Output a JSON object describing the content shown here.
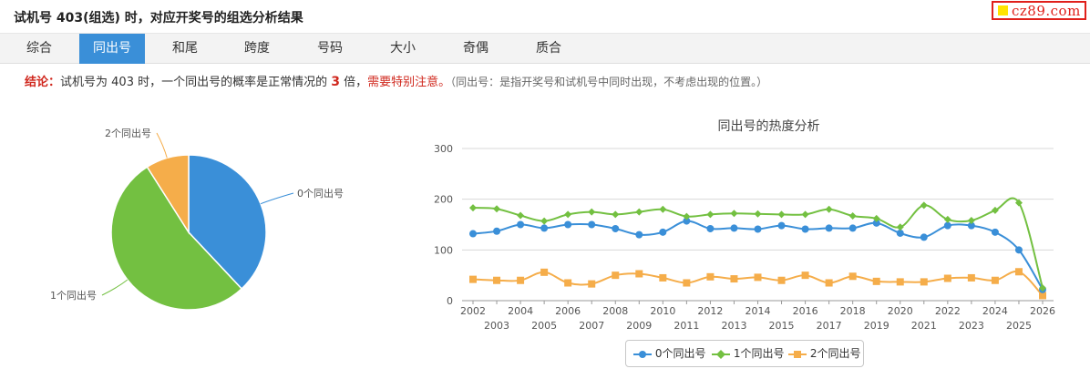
{
  "header": {
    "title": "试机号 403(组选) 时，对应开奖号的组选分析结果",
    "logo_text": "cz89.com"
  },
  "tabs": [
    {
      "label": "综合",
      "active": false
    },
    {
      "label": "同出号",
      "active": true
    },
    {
      "label": "和尾",
      "active": false
    },
    {
      "label": "跨度",
      "active": false
    },
    {
      "label": "号码",
      "active": false
    },
    {
      "label": "大小",
      "active": false
    },
    {
      "label": "奇偶",
      "active": false
    },
    {
      "label": "质合",
      "active": false
    }
  ],
  "conclusion": {
    "label": "结论：",
    "text_before": "试机号为 403 时，一个同出号的概率是正常情况的 ",
    "multiple": "3",
    "text_after": " 倍，",
    "warning": "需要特别注意。",
    "note": "（同出号：是指开奖号和试机号中同时出现，不考虑出现的位置。）"
  },
  "colors": {
    "series0": "#3a8fd8",
    "series1": "#73c041",
    "series2": "#f5ad4a",
    "accent_red": "#d0281e",
    "tab_active": "#3a8fd8"
  },
  "chart_data": [
    {
      "type": "pie",
      "labels": [
        "0个同出号",
        "1个同出号",
        "2个同出号"
      ],
      "values": [
        38,
        53,
        9
      ]
    },
    {
      "type": "line",
      "title": "同出号的热度分析",
      "x": [
        "2002",
        "2003",
        "2004",
        "2005",
        "2006",
        "2007",
        "2008",
        "2009",
        "2010",
        "2011",
        "2012",
        "2013",
        "2014",
        "2015",
        "2016",
        "2017",
        "2018",
        "2019",
        "2020",
        "2021",
        "2022",
        "2023",
        "2024",
        "2025",
        "2026"
      ],
      "ylim": [
        0,
        300
      ],
      "yticks": [
        0,
        100,
        200,
        300
      ],
      "grid": true,
      "legend_position": "bottom-center",
      "series": [
        {
          "name": "0个同出号",
          "marker": "circle",
          "values": [
            132,
            137,
            150,
            143,
            150,
            150,
            142,
            130,
            135,
            157,
            142,
            143,
            141,
            148,
            141,
            143,
            143,
            153,
            133,
            125,
            148,
            148,
            135,
            100,
            22
          ]
        },
        {
          "name": "1个同出号",
          "marker": "diamond",
          "values": [
            183,
            181,
            168,
            157,
            170,
            175,
            170,
            175,
            180,
            166,
            170,
            172,
            171,
            170,
            170,
            180,
            167,
            162,
            145,
            188,
            160,
            158,
            178,
            193,
            25
          ]
        },
        {
          "name": "2个同出号",
          "marker": "square",
          "values": [
            42,
            40,
            40,
            56,
            35,
            33,
            50,
            53,
            45,
            35,
            47,
            43,
            46,
            40,
            50,
            35,
            48,
            38,
            37,
            37,
            44,
            45,
            40,
            57,
            10
          ]
        }
      ]
    }
  ]
}
